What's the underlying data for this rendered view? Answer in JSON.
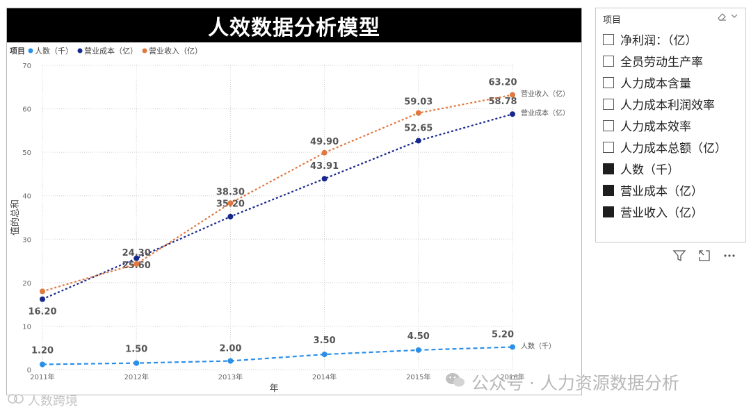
{
  "title": "人效数据分析模型",
  "colors": {
    "headcount": "#2b8fe8",
    "cost": "#17288c",
    "revenue": "#e07840",
    "title_bg": "#000000"
  },
  "chart_data": {
    "type": "line",
    "title": "人效数据分析模型",
    "xlabel": "年",
    "ylabel": "值的总和",
    "legend_title": "项目",
    "legend_position": "top-left",
    "ylim": [
      0,
      70
    ],
    "yticks": [
      0,
      10,
      20,
      30,
      40,
      50,
      60,
      70
    ],
    "grid": true,
    "categories": [
      "2011年",
      "2012年",
      "2013年",
      "2014年",
      "2015年",
      "2016年"
    ],
    "series": [
      {
        "name": "人数（千）",
        "color": "#2b8fe8",
        "values": [
          1.2,
          1.5,
          2.0,
          3.5,
          4.5,
          5.2
        ],
        "labels": [
          "1.20",
          "1.50",
          "2.00",
          "3.50",
          "4.50",
          "5.20"
        ],
        "end_label": "人数（千）"
      },
      {
        "name": "营业成本（亿）",
        "color": "#17288c",
        "values": [
          16.2,
          25.6,
          35.2,
          43.91,
          52.65,
          58.78
        ],
        "labels": [
          "16.20",
          "25.60",
          "35.20",
          "43.91",
          "52.65",
          "58.78"
        ],
        "end_label": "营业成本（亿）"
      },
      {
        "name": "营业收入（亿）",
        "color": "#e07840",
        "values": [
          18.0,
          24.3,
          38.3,
          49.9,
          59.03,
          63.2
        ],
        "labels": [
          "",
          "24.30",
          "38.30",
          "49.90",
          "59.03",
          "63.20"
        ],
        "end_label": "营业收入（亿）"
      }
    ]
  },
  "slicer": {
    "header": "项目",
    "items": [
      {
        "label": "净利润：（亿）",
        "checked": false
      },
      {
        "label": "全员劳动生产率",
        "checked": false
      },
      {
        "label": "人力成本含量",
        "checked": false
      },
      {
        "label": "人力成本利润效率",
        "checked": false
      },
      {
        "label": "人力成本效率",
        "checked": false
      },
      {
        "label": "人力成本总额（亿）",
        "checked": false
      },
      {
        "label": "人数（千）",
        "checked": true
      },
      {
        "label": "营业成本（亿）",
        "checked": true
      },
      {
        "label": "营业收入（亿）",
        "checked": true
      }
    ]
  },
  "toolbar": {
    "icons": [
      "filter-icon",
      "focus-mode-icon",
      "more-options-icon"
    ]
  },
  "watermarks": {
    "right": "公众号 · 人力资源数据分析",
    "left": "人数跨境"
  }
}
